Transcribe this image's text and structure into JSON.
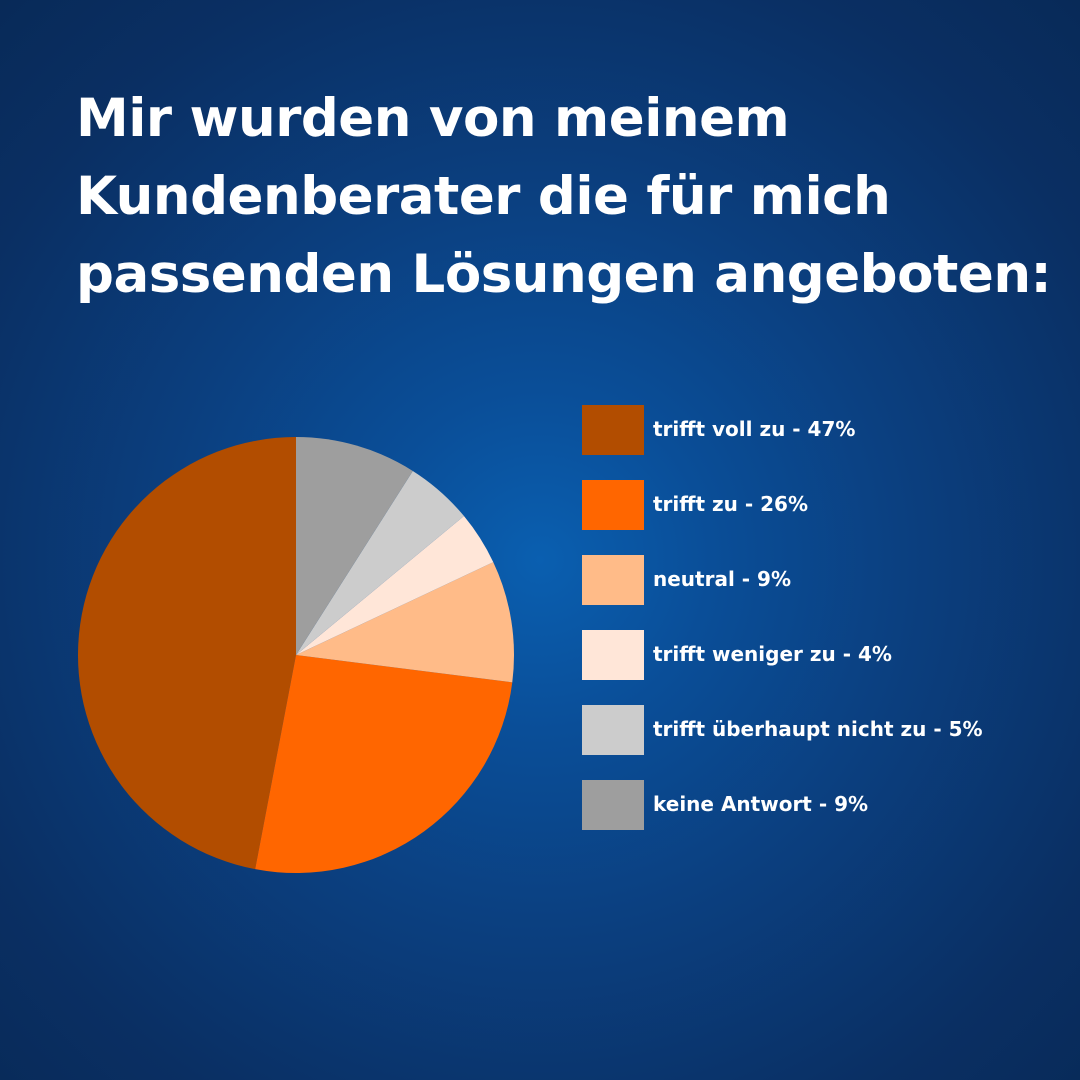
{
  "title_lines": [
    "Mir wurden von meinem",
    "Kundenberater die für mich",
    "passenden Lösungen angeboten:"
  ],
  "chart_data": {
    "type": "pie",
    "title": "Mir wurden von meinem Kundenberater die für mich passenden Lösungen angeboten:",
    "unit": "%",
    "start": "12 o'clock",
    "direction": "counterclockwise",
    "legend_position": "right",
    "slices": [
      {
        "label": "trifft voll zu - 47%",
        "name": "trifft voll zu",
        "value": 47,
        "color": "#b24d00"
      },
      {
        "label": "trifft zu - 26%",
        "name": "trifft zu",
        "value": 26,
        "color": "#ff6600"
      },
      {
        "label": "neutral - 9%",
        "name": "neutral",
        "value": 9,
        "color": "#ffbb88"
      },
      {
        "label": "trifft weniger zu - 4%",
        "name": "trifft weniger zu",
        "value": 4,
        "color": "#ffe6d8"
      },
      {
        "label": "trifft überhaupt nicht zu - 5%",
        "name": "trifft überhaupt nicht zu",
        "value": 5,
        "color": "#cccccc"
      },
      {
        "label": "keine Antwort - 9%",
        "name": "keine Antwort",
        "value": 9,
        "color": "#9e9e9e"
      }
    ]
  }
}
